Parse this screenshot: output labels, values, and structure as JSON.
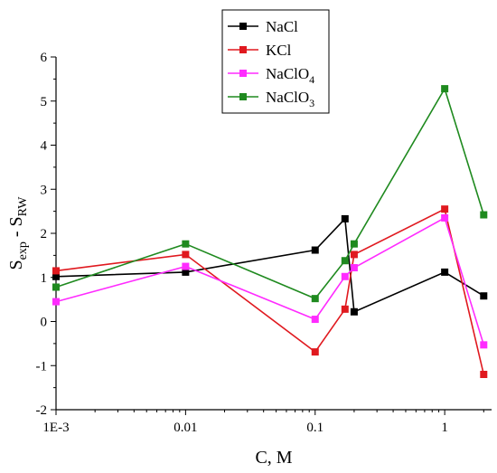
{
  "chart_data": {
    "type": "line",
    "title": "",
    "xlabel": "C, M",
    "ylabel": {
      "base": "S",
      "sub1": "exp",
      "mid": " - S",
      "sub2": "RW"
    },
    "xscale": "log",
    "xlim": [
      0.001,
      2.3
    ],
    "ylim": [
      -2,
      6
    ],
    "xticks": [
      {
        "value": 0.001,
        "label": "1E-3"
      },
      {
        "value": 0.01,
        "label": "0.01"
      },
      {
        "value": 0.1,
        "label": "0.1"
      },
      {
        "value": 1,
        "label": "1"
      }
    ],
    "yticks": [
      {
        "value": -2,
        "label": "-2"
      },
      {
        "value": -1,
        "label": "-1"
      },
      {
        "value": 0,
        "label": "0"
      },
      {
        "value": 1,
        "label": "1"
      },
      {
        "value": 2,
        "label": "2"
      },
      {
        "value": 3,
        "label": "3"
      },
      {
        "value": 4,
        "label": "4"
      },
      {
        "value": 5,
        "label": "5"
      },
      {
        "value": 6,
        "label": "6"
      }
    ],
    "legend_position": "top-center",
    "series": [
      {
        "name": "NaCl",
        "name_base": "NaCl",
        "name_sub": "",
        "color": "#000000",
        "x": [
          0.001,
          0.01,
          0.1,
          0.17,
          0.2,
          1,
          2
        ],
        "y": [
          1.02,
          1.12,
          1.62,
          2.33,
          0.22,
          1.12,
          0.58
        ]
      },
      {
        "name": "KCl",
        "name_base": "KCl",
        "name_sub": "",
        "color": "#e0191f",
        "x": [
          0.001,
          0.01,
          0.1,
          0.17,
          0.2,
          1,
          2
        ],
        "y": [
          1.15,
          1.52,
          -0.69,
          0.28,
          1.52,
          2.55,
          -1.2
        ]
      },
      {
        "name": "NaClO4",
        "name_base": "NaClO",
        "name_sub": "4",
        "color": "#ff2bff",
        "x": [
          0.001,
          0.01,
          0.1,
          0.17,
          0.2,
          1,
          2
        ],
        "y": [
          0.45,
          1.25,
          0.05,
          1.02,
          1.22,
          2.35,
          -0.53
        ]
      },
      {
        "name": "NaClO3",
        "name_base": "NaClO",
        "name_sub": "3",
        "color": "#1f8a1f",
        "x": [
          0.001,
          0.01,
          0.1,
          0.17,
          0.2,
          1,
          2
        ],
        "y": [
          0.78,
          1.76,
          0.52,
          1.38,
          1.76,
          5.28,
          2.42
        ]
      }
    ]
  }
}
